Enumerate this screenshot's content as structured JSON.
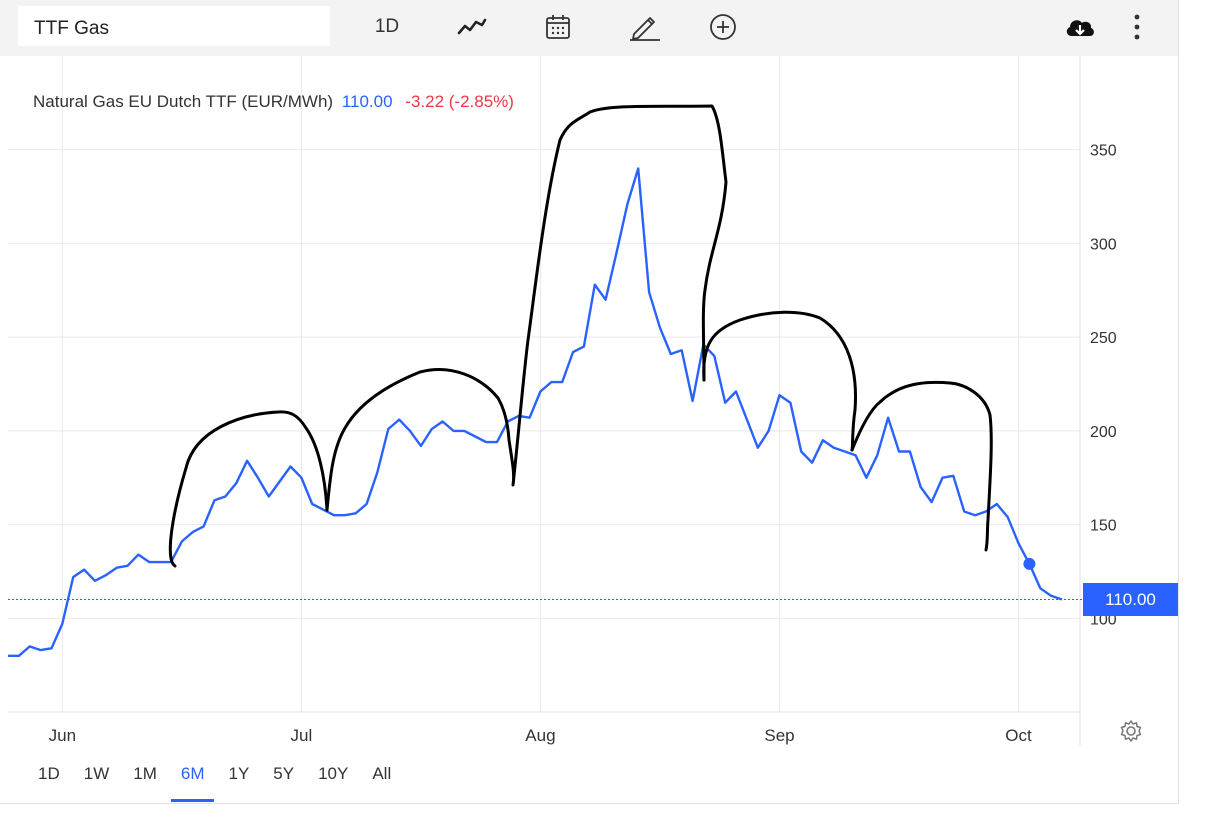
{
  "toolbar": {
    "symbol": "TTF Gas",
    "interval": "1D",
    "icons": [
      "line-chart-icon",
      "calendar-icon",
      "draw-pencil-icon",
      "add-circle-icon",
      "cloud-download-icon",
      "more-vertical-icon"
    ]
  },
  "legend": {
    "name": "Natural Gas EU Dutch TTF (EUR/MWh)",
    "price": "110.00",
    "change": "-3.22 (-2.85%)"
  },
  "last_price_tag": "110.00",
  "range_buttons": [
    {
      "label": "1D",
      "active": false
    },
    {
      "label": "1W",
      "active": false
    },
    {
      "label": "1M",
      "active": false
    },
    {
      "label": "6M",
      "active": true
    },
    {
      "label": "1Y",
      "active": false
    },
    {
      "label": "5Y",
      "active": false
    },
    {
      "label": "10Y",
      "active": false
    },
    {
      "label": "All",
      "active": false
    }
  ],
  "colors": {
    "line": "#2962ff",
    "negative": "#f23645",
    "annotation": "#000000",
    "grid": "#e9e9e9"
  },
  "chart_data": {
    "type": "line",
    "title": "Natural Gas EU Dutch TTF (EUR/MWh)",
    "xlabel": "",
    "ylabel": "",
    "x_ticks": [
      "Jun",
      "Jul",
      "Aug",
      "Sep",
      "Oct"
    ],
    "y_ticks": [
      100,
      150,
      200,
      250,
      300,
      350
    ],
    "ylim": [
      50,
      400
    ],
    "grid": true,
    "last_value": 110.0,
    "series": [
      {
        "name": "Natural Gas EU Dutch TTF",
        "values": [
          80,
          80,
          85,
          83,
          84,
          97,
          122,
          126,
          120,
          123,
          127,
          128,
          134,
          130,
          130,
          130,
          141,
          146,
          149,
          163,
          165,
          172,
          184,
          175,
          165,
          173,
          181,
          175,
          161,
          158,
          155,
          155,
          156,
          161,
          178,
          201,
          206,
          200,
          192,
          201,
          205,
          200,
          200,
          197,
          194,
          194,
          205,
          208,
          207,
          221,
          226,
          226,
          242,
          245,
          278,
          270,
          295,
          321,
          340,
          274,
          255,
          241,
          243,
          216,
          246,
          240,
          215,
          221,
          206,
          191,
          200,
          219,
          215,
          189,
          183,
          195,
          191,
          189,
          187,
          175,
          187,
          207,
          189,
          189,
          170,
          162,
          175,
          176,
          157,
          155,
          157,
          161,
          154,
          140,
          129,
          116,
          112,
          110
        ]
      }
    ],
    "annotations": [
      {
        "type": "freehand-arch",
        "description_hidden": true
      }
    ]
  }
}
